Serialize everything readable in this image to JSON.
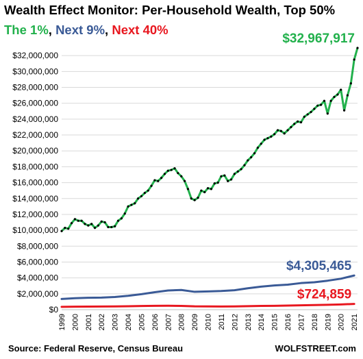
{
  "title": "Wealth Effect Monitor: Per-Household Wealth, Top 50%",
  "legend": [
    {
      "text": "The 1%",
      "color": "#22b14c"
    },
    {
      "text": ", ",
      "color": "#000000"
    },
    {
      "text": "Next 9%",
      "color": "#3a5a96"
    },
    {
      "text": ", ",
      "color": "#000000"
    },
    {
      "text": "Next 40%",
      "color": "#e8171f"
    }
  ],
  "source": "Source: Federal Reserve, Census Bureau",
  "brand": "WOLFSTREET.com",
  "chart_data": {
    "type": "line",
    "ylim": [
      0,
      34000000
    ],
    "xlim": [
      1999.0,
      2021.25
    ],
    "y_ticks": [
      0,
      2000000,
      4000000,
      6000000,
      8000000,
      10000000,
      12000000,
      14000000,
      16000000,
      18000000,
      20000000,
      22000000,
      24000000,
      26000000,
      28000000,
      30000000,
      32000000
    ],
    "y_tick_labels": [
      "$0",
      "$2,000,000",
      "$4,000,000",
      "$6,000,000",
      "$8,000,000",
      "$10,000,000",
      "$12,000,000",
      "$14,000,000",
      "$16,000,000",
      "$18,000,000",
      "$20,000,000",
      "$22,000,000",
      "$24,000,000",
      "$26,000,000",
      "$28,000,000",
      "$30,000,000",
      "$32,000,000"
    ],
    "x_tick_labels": [
      "1999",
      "2000",
      "2001",
      "2002",
      "2003",
      "2004",
      "2005",
      "2006",
      "2007",
      "2008",
      "2009",
      "2010",
      "2011",
      "2012",
      "2013",
      "2014",
      "2015",
      "2016",
      "2017",
      "2018",
      "2019",
      "2020",
      "2021"
    ],
    "grid": {
      "horizontal": true,
      "vertical": false
    },
    "series": [
      {
        "name": "The 1%",
        "color": "#22b14c",
        "end_label": "$32,967,917",
        "markers": true,
        "start": 1999.0,
        "step": 0.25,
        "values": [
          9900000,
          10300000,
          10200000,
          10900000,
          11400000,
          11200000,
          11200000,
          10800000,
          10600000,
          10800000,
          10300000,
          10600000,
          11100000,
          11000000,
          10400000,
          10400000,
          10500000,
          11200000,
          11500000,
          12100000,
          13000000,
          13200000,
          13400000,
          14000000,
          14300000,
          14700000,
          15000000,
          15600000,
          16300000,
          16200000,
          16600000,
          17100000,
          17500000,
          17600000,
          17800000,
          17200000,
          16800000,
          16200000,
          15200000,
          14000000,
          13800000,
          14100000,
          15000000,
          14800000,
          15300000,
          15200000,
          15900000,
          16000000,
          16800000,
          16900000,
          16200000,
          16400000,
          17100000,
          17400000,
          17700000,
          18200000,
          18800000,
          19200000,
          19700000,
          20400000,
          20900000,
          21400000,
          21600000,
          21800000,
          22100000,
          22600000,
          22500000,
          22200000,
          22600000,
          23000000,
          23400000,
          23700000,
          23600000,
          24300000,
          24600000,
          24900000,
          25300000,
          25700000,
          25800000,
          26300000,
          24700000,
          26300000,
          26800000,
          27100000,
          27700000,
          25100000,
          27000000,
          28500000,
          31500000,
          32967917
        ]
      },
      {
        "name": "Next 9%",
        "color": "#3a5a96",
        "end_label": "$4,305,465",
        "markers": false,
        "start": 1999.0,
        "step": 1.0,
        "values": [
          1350000,
          1450000,
          1500000,
          1520000,
          1600000,
          1750000,
          1950000,
          2200000,
          2420000,
          2480000,
          2250000,
          2300000,
          2350000,
          2450000,
          2700000,
          2900000,
          3050000,
          3150000,
          3350000,
          3450000,
          3650000,
          3900000,
          4305465
        ]
      },
      {
        "name": "Next 40%",
        "color": "#e8171f",
        "end_label": "$724,859",
        "markers": false,
        "start": 1999.0,
        "step": 1.0,
        "values": [
          360000,
          380000,
          390000,
          395000,
          405000,
          430000,
          460000,
          490000,
          500000,
          480000,
          420000,
          405000,
          400000,
          410000,
          440000,
          470000,
          490000,
          520000,
          555000,
          580000,
          620000,
          660000,
          724859
        ]
      }
    ]
  }
}
